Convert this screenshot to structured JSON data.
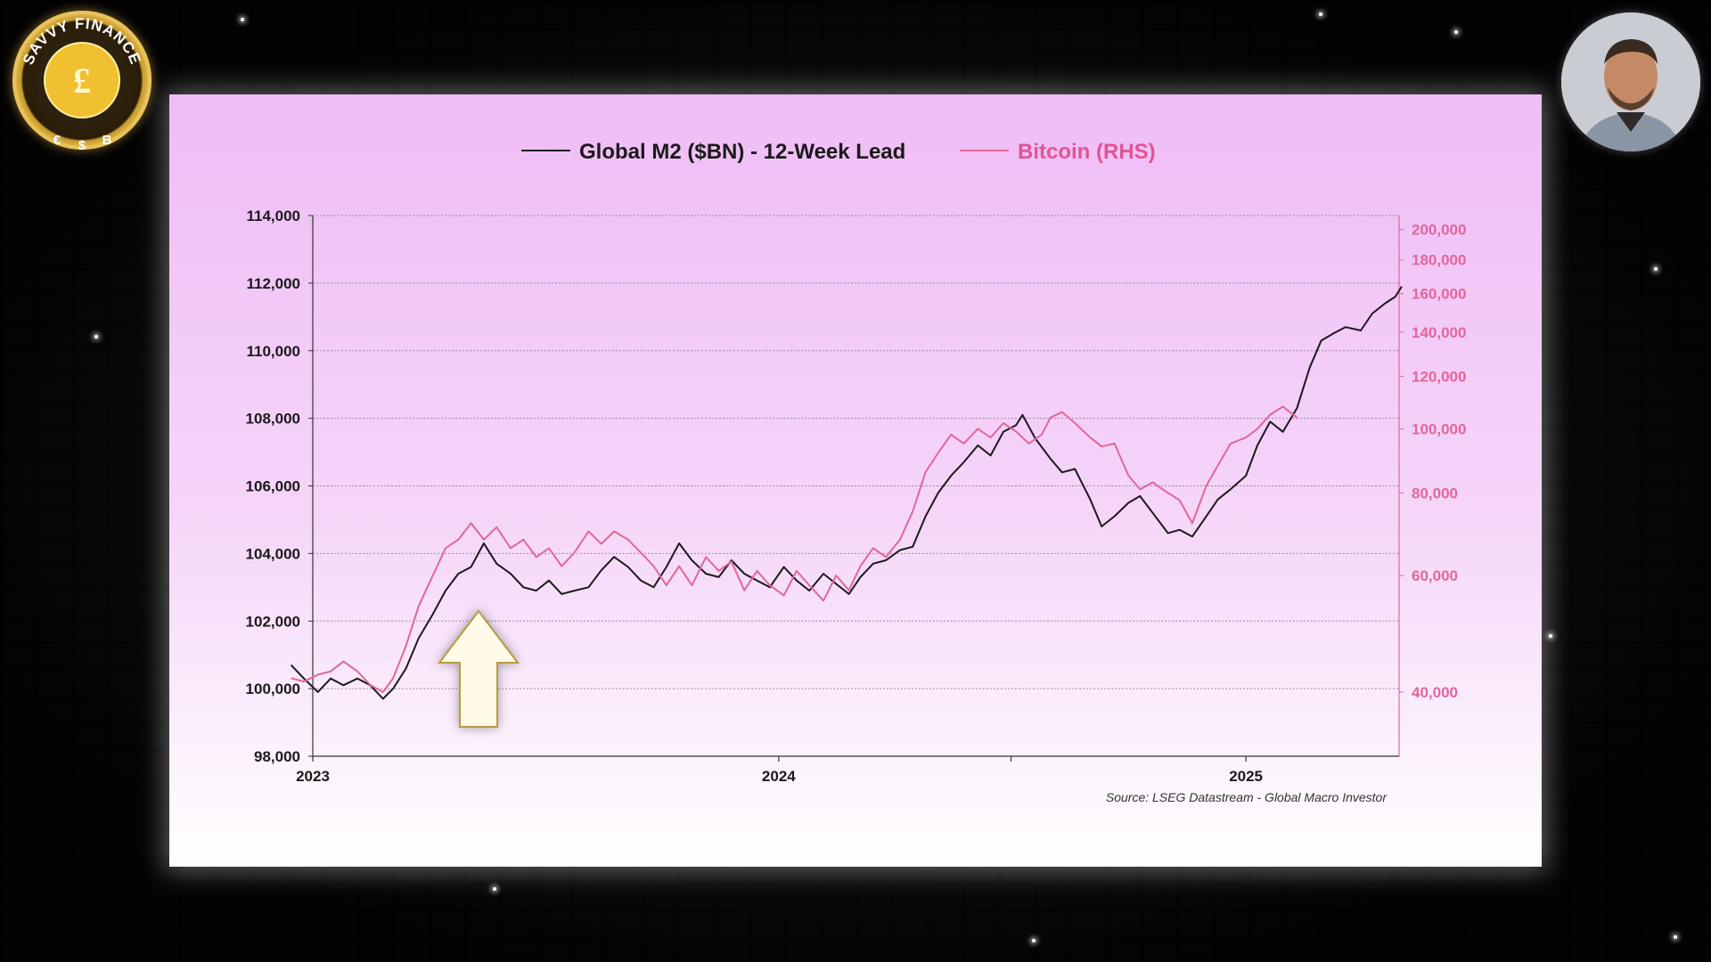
{
  "channel": {
    "name": "SAVVY FINANCE",
    "logo_symbols": [
      "£",
      "€",
      "$",
      "B"
    ]
  },
  "presenter": {
    "icon": "presenter-avatar"
  },
  "chart_data": {
    "type": "line",
    "legend": {
      "m2_label": "Global M2 ($BN) - 12-Week Lead",
      "btc_label": "Bitcoin (RHS)",
      "placement": "top-center"
    },
    "source": "Source: LSEG Datastream - Global Macro Investor",
    "left_axis": {
      "ticks": [
        "114,000",
        "112,000",
        "110,000",
        "108,000",
        "106,000",
        "104,000",
        "102,000",
        "100,000",
        "98,000"
      ],
      "ylim": [
        98000,
        114000
      ]
    },
    "right_axis": {
      "scale": "log",
      "ticks": [
        "200,000",
        "180,000",
        "160,000",
        "140,000",
        "120,000",
        "100,000",
        "80,000",
        "60,000",
        "40,000"
      ],
      "ylim": [
        32000,
        210000
      ]
    },
    "x_axis": {
      "labels": [
        "2023",
        "2024",
        "2025"
      ],
      "xlim": [
        "2023-01-01",
        "2025-05-01"
      ]
    },
    "grid": true,
    "annotation": "up-arrow",
    "series": [
      {
        "name": "Global M2 ($BN) - 12-Week Lead",
        "axis": "left",
        "color": "#1a1a1a",
        "points": [
          [
            "2022-12-15",
            100700
          ],
          [
            "2022-12-25",
            100300
          ],
          [
            "2023-01-05",
            99900
          ],
          [
            "2023-01-15",
            100300
          ],
          [
            "2023-01-25",
            100100
          ],
          [
            "2023-02-05",
            100300
          ],
          [
            "2023-02-15",
            100100
          ],
          [
            "2023-02-25",
            99700
          ],
          [
            "2023-03-05",
            100000
          ],
          [
            "2023-03-15",
            100600
          ],
          [
            "2023-03-25",
            101500
          ],
          [
            "2023-04-05",
            102200
          ],
          [
            "2023-04-15",
            102900
          ],
          [
            "2023-04-25",
            103400
          ],
          [
            "2023-05-05",
            103600
          ],
          [
            "2023-05-15",
            104300
          ],
          [
            "2023-05-25",
            103700
          ],
          [
            "2023-06-05",
            103400
          ],
          [
            "2023-06-15",
            103000
          ],
          [
            "2023-06-25",
            102900
          ],
          [
            "2023-07-05",
            103200
          ],
          [
            "2023-07-15",
            102800
          ],
          [
            "2023-07-25",
            102900
          ],
          [
            "2023-08-05",
            103000
          ],
          [
            "2023-08-15",
            103500
          ],
          [
            "2023-08-25",
            103900
          ],
          [
            "2023-09-05",
            103600
          ],
          [
            "2023-09-15",
            103200
          ],
          [
            "2023-09-25",
            103000
          ],
          [
            "2023-10-05",
            103600
          ],
          [
            "2023-10-15",
            104300
          ],
          [
            "2023-10-25",
            103800
          ],
          [
            "2023-11-05",
            103400
          ],
          [
            "2023-11-15",
            103300
          ],
          [
            "2023-11-25",
            103800
          ],
          [
            "2023-12-05",
            103400
          ],
          [
            "2023-12-15",
            103200
          ],
          [
            "2023-12-25",
            103000
          ],
          [
            "2024-01-05",
            103600
          ],
          [
            "2024-01-15",
            103200
          ],
          [
            "2024-01-25",
            102900
          ],
          [
            "2024-02-05",
            103400
          ],
          [
            "2024-02-15",
            103100
          ],
          [
            "2024-02-25",
            102800
          ],
          [
            "2024-03-05",
            103300
          ],
          [
            "2024-03-15",
            103700
          ],
          [
            "2024-03-25",
            103800
          ],
          [
            "2024-04-05",
            104100
          ],
          [
            "2024-04-15",
            104200
          ],
          [
            "2024-04-25",
            105100
          ],
          [
            "2024-05-05",
            105800
          ],
          [
            "2024-05-15",
            106300
          ],
          [
            "2024-05-25",
            106700
          ],
          [
            "2024-06-05",
            107200
          ],
          [
            "2024-06-15",
            106900
          ],
          [
            "2024-06-25",
            107600
          ],
          [
            "2024-07-05",
            107800
          ],
          [
            "2024-07-10",
            108100
          ],
          [
            "2024-07-20",
            107400
          ],
          [
            "2024-08-01",
            106800
          ],
          [
            "2024-08-10",
            106400
          ],
          [
            "2024-08-20",
            106500
          ],
          [
            "2024-09-01",
            105600
          ],
          [
            "2024-09-10",
            104800
          ],
          [
            "2024-09-20",
            105100
          ],
          [
            "2024-10-01",
            105500
          ],
          [
            "2024-10-10",
            105700
          ],
          [
            "2024-10-20",
            105200
          ],
          [
            "2024-11-01",
            104600
          ],
          [
            "2024-11-10",
            104700
          ],
          [
            "2024-11-20",
            104500
          ],
          [
            "2024-12-01",
            105100
          ],
          [
            "2024-12-10",
            105600
          ],
          [
            "2024-12-20",
            105900
          ],
          [
            "2025-01-01",
            106300
          ],
          [
            "2025-01-10",
            107200
          ],
          [
            "2025-01-20",
            107900
          ],
          [
            "2025-01-30",
            107600
          ],
          [
            "2025-02-10",
            108300
          ],
          [
            "2025-02-20",
            109500
          ],
          [
            "2025-03-01",
            110300
          ],
          [
            "2025-03-10",
            110500
          ],
          [
            "2025-03-20",
            110700
          ],
          [
            "2025-04-01",
            110600
          ],
          [
            "2025-04-10",
            111100
          ],
          [
            "2025-04-20",
            111400
          ],
          [
            "2025-04-28",
            111600
          ],
          [
            "2025-05-03",
            111900
          ]
        ]
      },
      {
        "name": "Bitcoin (RHS)",
        "axis": "right",
        "color": "#e0679a",
        "points": [
          [
            "2022-12-15",
            42000
          ],
          [
            "2022-12-25",
            41500
          ],
          [
            "2023-01-05",
            42500
          ],
          [
            "2023-01-15",
            43000
          ],
          [
            "2023-01-25",
            44500
          ],
          [
            "2023-02-05",
            43000
          ],
          [
            "2023-02-15",
            41000
          ],
          [
            "2023-02-25",
            40000
          ],
          [
            "2023-03-05",
            42000
          ],
          [
            "2023-03-15",
            47000
          ],
          [
            "2023-03-25",
            54000
          ],
          [
            "2023-04-05",
            60000
          ],
          [
            "2023-04-15",
            66000
          ],
          [
            "2023-04-25",
            68000
          ],
          [
            "2023-05-05",
            72000
          ],
          [
            "2023-05-15",
            68000
          ],
          [
            "2023-05-25",
            71000
          ],
          [
            "2023-06-05",
            66000
          ],
          [
            "2023-06-15",
            68000
          ],
          [
            "2023-06-25",
            64000
          ],
          [
            "2023-07-05",
            66000
          ],
          [
            "2023-07-15",
            62000
          ],
          [
            "2023-07-25",
            65000
          ],
          [
            "2023-08-05",
            70000
          ],
          [
            "2023-08-15",
            67000
          ],
          [
            "2023-08-25",
            70000
          ],
          [
            "2023-09-05",
            68000
          ],
          [
            "2023-09-15",
            65000
          ],
          [
            "2023-09-25",
            62000
          ],
          [
            "2023-10-05",
            58000
          ],
          [
            "2023-10-15",
            62000
          ],
          [
            "2023-10-25",
            58000
          ],
          [
            "2023-11-05",
            64000
          ],
          [
            "2023-11-15",
            61000
          ],
          [
            "2023-11-25",
            63000
          ],
          [
            "2023-12-05",
            57000
          ],
          [
            "2023-12-15",
            61000
          ],
          [
            "2023-12-25",
            58000
          ],
          [
            "2024-01-05",
            56000
          ],
          [
            "2024-01-15",
            61000
          ],
          [
            "2024-01-25",
            58000
          ],
          [
            "2024-02-05",
            55000
          ],
          [
            "2024-02-15",
            60000
          ],
          [
            "2024-02-25",
            57000
          ],
          [
            "2024-03-05",
            62000
          ],
          [
            "2024-03-15",
            66000
          ],
          [
            "2024-03-25",
            64000
          ],
          [
            "2024-04-05",
            68000
          ],
          [
            "2024-04-15",
            75000
          ],
          [
            "2024-04-25",
            86000
          ],
          [
            "2024-05-05",
            92000
          ],
          [
            "2024-05-15",
            98000
          ],
          [
            "2024-05-25",
            95000
          ],
          [
            "2024-06-05",
            100000
          ],
          [
            "2024-06-15",
            97000
          ],
          [
            "2024-06-25",
            102000
          ],
          [
            "2024-07-05",
            99000
          ],
          [
            "2024-07-15",
            95000
          ],
          [
            "2024-07-25",
            98000
          ],
          [
            "2024-08-01",
            104000
          ],
          [
            "2024-08-10",
            106000
          ],
          [
            "2024-08-20",
            102000
          ],
          [
            "2024-09-01",
            97000
          ],
          [
            "2024-09-10",
            94000
          ],
          [
            "2024-09-20",
            95000
          ],
          [
            "2024-10-01",
            85000
          ],
          [
            "2024-10-10",
            81000
          ],
          [
            "2024-10-20",
            83000
          ],
          [
            "2024-11-01",
            80000
          ],
          [
            "2024-11-10",
            78000
          ],
          [
            "2024-11-20",
            72000
          ],
          [
            "2024-12-01",
            82000
          ],
          [
            "2024-12-10",
            88000
          ],
          [
            "2024-12-20",
            95000
          ],
          [
            "2025-01-01",
            97000
          ],
          [
            "2025-01-10",
            100000
          ],
          [
            "2025-01-20",
            105000
          ],
          [
            "2025-01-30",
            108000
          ],
          [
            "2025-02-10",
            104000
          ]
        ]
      }
    ]
  }
}
